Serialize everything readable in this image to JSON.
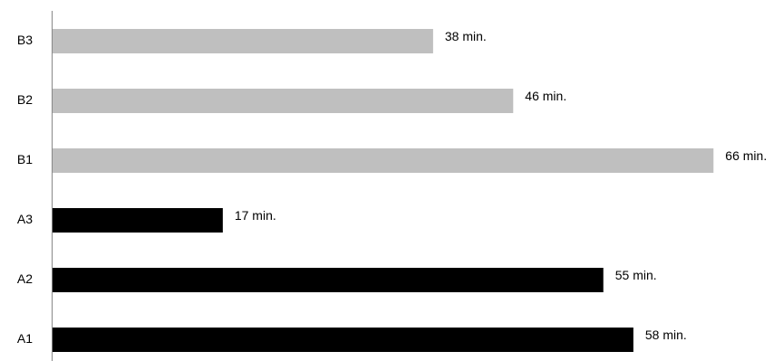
{
  "chart_data": {
    "type": "bar",
    "orientation": "horizontal",
    "title": "",
    "xlabel": "",
    "ylabel": "",
    "categories": [
      "B3",
      "B2",
      "B1",
      "A3",
      "A2",
      "A1"
    ],
    "values": [
      38,
      46,
      66,
      17,
      55,
      58
    ],
    "value_labels": [
      "38 min.",
      "46 min.",
      "66 min.",
      "17 min.",
      "55 min.",
      "58 min."
    ],
    "bar_colors": [
      "#bfbfbf",
      "#bfbfbf",
      "#bfbfbf",
      "#000000",
      "#000000",
      "#000000"
    ],
    "xlim": [
      0,
      66
    ],
    "grid": false,
    "legend": "none"
  }
}
